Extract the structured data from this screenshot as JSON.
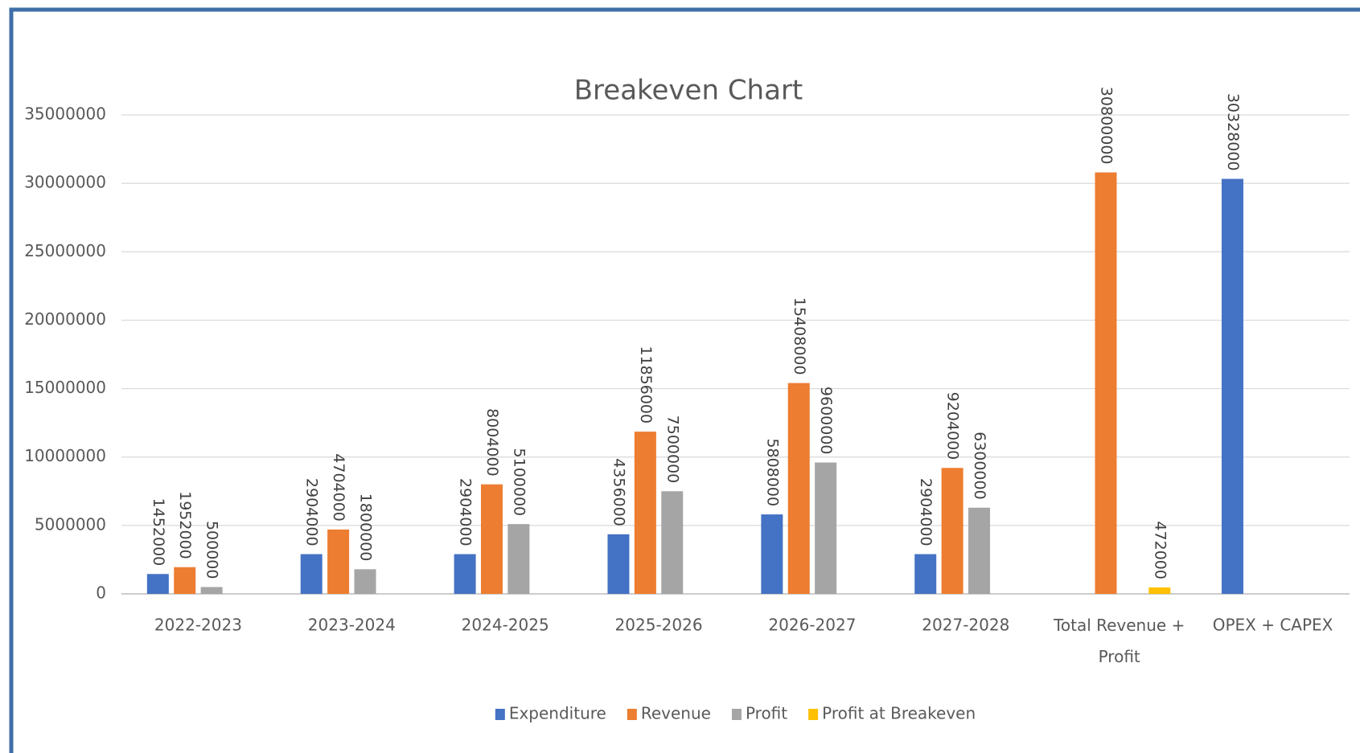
{
  "chart_data": {
    "type": "bar",
    "title": "Breakeven Chart",
    "categories": [
      "2022-2023",
      "2023-2024",
      "2024-2025",
      "2025-2026",
      "2026-2027",
      "2027-2028",
      "Total Revenue + Profit",
      "OPEX + CAPEX"
    ],
    "series": [
      {
        "name": "Expenditure",
        "color": "#4472c4",
        "values": [
          1452000,
          2904000,
          2904000,
          4356000,
          5808000,
          2904000,
          null,
          30328000
        ]
      },
      {
        "name": "Revenue",
        "color": "#ed7d31",
        "values": [
          1952000,
          4704000,
          8004000,
          11856000,
          15408000,
          9204000,
          30800000,
          null
        ]
      },
      {
        "name": "Profit",
        "color": "#a5a5a5",
        "values": [
          500000,
          1800000,
          5100000,
          7500000,
          9600000,
          6300000,
          null,
          null
        ]
      },
      {
        "name": "Profit at Breakeven",
        "color": "#ffc000",
        "values": [
          null,
          null,
          null,
          null,
          null,
          null,
          472000,
          null
        ]
      }
    ],
    "ylim": [
      0,
      35000000
    ],
    "yticks": [
      0,
      5000000,
      10000000,
      15000000,
      20000000,
      25000000,
      30000000,
      35000000
    ],
    "grid": true,
    "legend": "bottom"
  }
}
